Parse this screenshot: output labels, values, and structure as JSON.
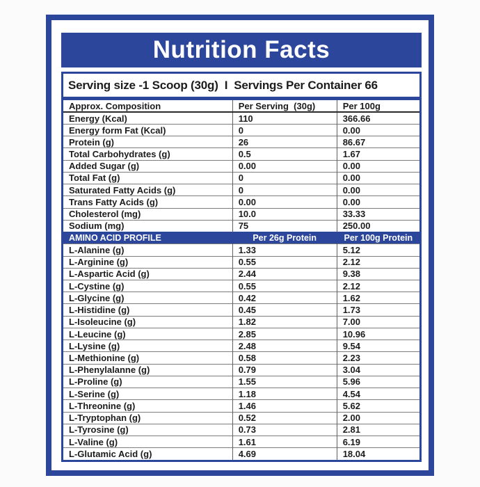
{
  "accent_blue": "#2b469b",
  "title": "Nutrition Facts",
  "serving_line": "Serving size -1 Scoop (30g)  I  Servings Per Container 66",
  "composition_table": {
    "headers": {
      "col1": "Approx. Composition",
      "col2": "Per Serving  (30g)",
      "col3": "Per 100g"
    },
    "rows": [
      {
        "label": "Energy (Kcal)",
        "per_serving": "110",
        "per_100g": "366.66"
      },
      {
        "label": "Energy form Fat (Kcal)",
        "per_serving": "0",
        "per_100g": "0.00"
      },
      {
        "label": "Protein (g)",
        "per_serving": "26",
        "per_100g": "86.67"
      },
      {
        "label": "Total Carbohydrates (g)",
        "per_serving": "0.5",
        "per_100g": "1.67"
      },
      {
        "label": "Added Sugar (g)",
        "per_serving": "0.00",
        "per_100g": "0.00"
      },
      {
        "label": "Total Fat (g)",
        "per_serving": "0",
        "per_100g": "0.00"
      },
      {
        "label": "Saturated Fatty Acids (g)",
        "per_serving": "0",
        "per_100g": "0.00"
      },
      {
        "label": "Trans Fatty Acids (g)",
        "per_serving": "0.00",
        "per_100g": "0.00"
      },
      {
        "label": "Cholesterol (mg)",
        "per_serving": "10.0",
        "per_100g": "33.33"
      },
      {
        "label": "Sodium (mg)",
        "per_serving": "75",
        "per_100g": "250.00"
      }
    ]
  },
  "amino_table": {
    "headers": {
      "col1": "AMINO ACID PROFILE",
      "col2": "Per 26g Protein",
      "col3": "Per 100g Protein"
    },
    "rows": [
      {
        "label": "L-Alanine (g)",
        "per_26g": "1.33",
        "per_100g": "5.12"
      },
      {
        "label": "L-Arginine (g)",
        "per_26g": "0.55",
        "per_100g": "2.12"
      },
      {
        "label": "L-Aspartic Acid (g)",
        "per_26g": "2.44",
        "per_100g": "9.38"
      },
      {
        "label": "L-Cystine (g)",
        "per_26g": "0.55",
        "per_100g": "2.12"
      },
      {
        "label": "L-Glycine (g)",
        "per_26g": "0.42",
        "per_100g": "1.62"
      },
      {
        "label": "L-Histidine (g)",
        "per_26g": "0.45",
        "per_100g": "1.73"
      },
      {
        "label": "L-Isoleucine (g)",
        "per_26g": "1.82",
        "per_100g": "7.00"
      },
      {
        "label": "L-Leucine (g)",
        "per_26g": "2.85",
        "per_100g": "10.96"
      },
      {
        "label": "L-Lysine (g)",
        "per_26g": "2.48",
        "per_100g": "9.54"
      },
      {
        "label": "L-Methionine (g)",
        "per_26g": "0.58",
        "per_100g": "2.23"
      },
      {
        "label": "L-Phenylalanne (g)",
        "per_26g": "0.79",
        "per_100g": "3.04"
      },
      {
        "label": "L-Proline (g)",
        "per_26g": "1.55",
        "per_100g": "5.96"
      },
      {
        "label": "L-Serine (g)",
        "per_26g": "1.18",
        "per_100g": "4.54"
      },
      {
        "label": "L-Threonine (g)",
        "per_26g": "1.46",
        "per_100g": "5.62"
      },
      {
        "label": "L-Tryptophan (g)",
        "per_26g": "0.52",
        "per_100g": "2.00"
      },
      {
        "label": "L-Tyrosine (g)",
        "per_26g": "0.73",
        "per_100g": "2.81"
      },
      {
        "label": "L-Valine (g)",
        "per_26g": "1.61",
        "per_100g": "6.19"
      },
      {
        "label": "L-Glutamic Acid (g)",
        "per_26g": "4.69",
        "per_100g": "18.04"
      }
    ]
  }
}
